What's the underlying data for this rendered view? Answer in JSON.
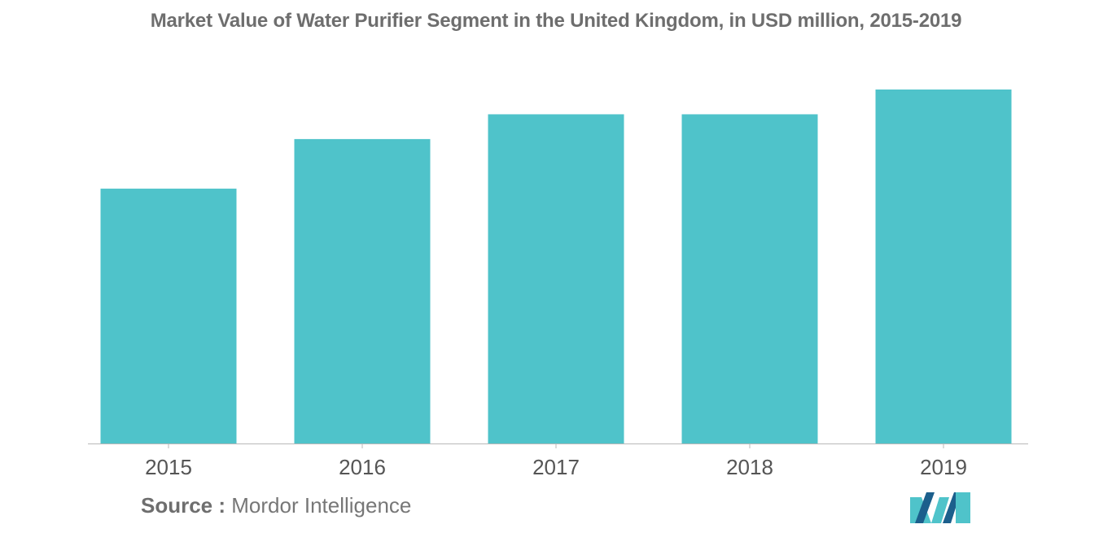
{
  "chart_data": {
    "type": "bar",
    "title": "Market Value of Water Purifier Segment in the United Kingdom, in USD million, 2015-2019",
    "categories": [
      "2015",
      "2016",
      "2017",
      "2018",
      "2019"
    ],
    "values": [
      72,
      86,
      93,
      93,
      100
    ],
    "ylim": [
      0,
      100
    ],
    "xlabel": "",
    "ylabel": "",
    "grid": false,
    "legend": "none",
    "bar_color": "#4fc3ca",
    "axis_color": "#b8b8b8"
  },
  "source": {
    "label": "Source :",
    "text": "Mordor Intelligence"
  },
  "logo": {
    "icon": "mordor-intelligence-logo-icon",
    "colors": [
      "#4fc3ca",
      "#1c5f8c"
    ]
  }
}
